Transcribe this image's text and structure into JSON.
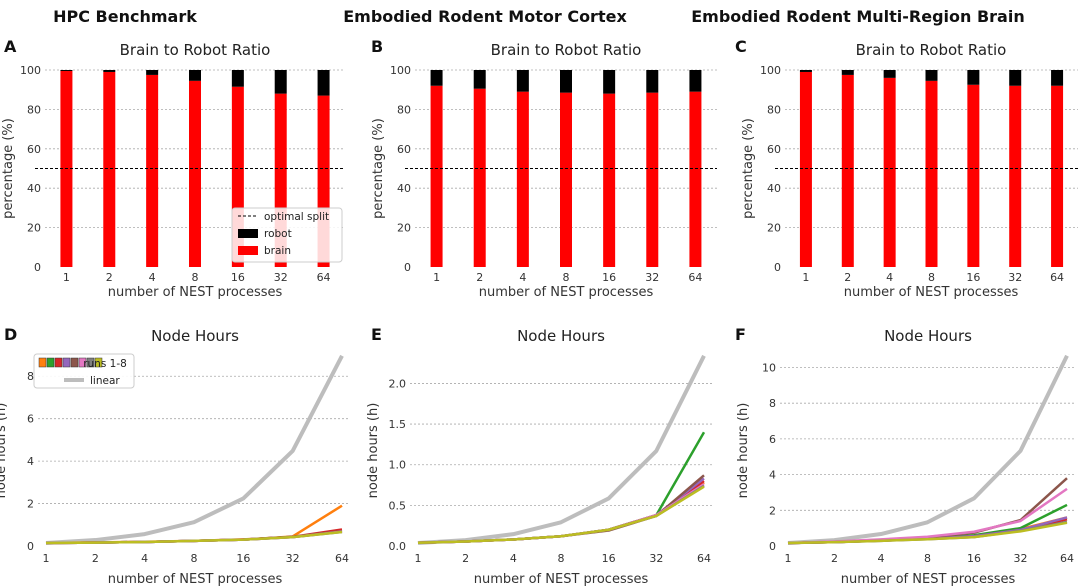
{
  "column_titles": [
    "HPC Benchmark",
    "Embodied Rodent Motor Cortex",
    "Embodied Rodent Multi-Region Brain"
  ],
  "colors": {
    "brain": "#ff0000",
    "robot": "#000000",
    "linear": "#bdbdbd",
    "runs": [
      "#ff7f0e",
      "#2ca02c",
      "#d62728",
      "#9467bd",
      "#8c564b",
      "#e377c2",
      "#7f7f7f",
      "#bcbd22"
    ]
  },
  "legend_ratio": {
    "optimal": "optimal split",
    "robot": "robot",
    "brain": "brain"
  },
  "legend_hours": {
    "runs": "runs 1-8",
    "linear": "linear"
  },
  "chart_data": [
    {
      "id": "A",
      "type": "bar",
      "stacked": true,
      "title": "Brain to Robot Ratio",
      "xlabel": "number of NEST processes",
      "ylabel": "percentage (%)",
      "categories": [
        "1",
        "2",
        "4",
        "8",
        "16",
        "32",
        "64"
      ],
      "ylim": [
        0,
        100
      ],
      "yticks": [
        0,
        20,
        40,
        60,
        80,
        100
      ],
      "reference_line": 50,
      "series": [
        {
          "name": "brain",
          "values": [
            99.5,
            99,
            97.5,
            94.5,
            91.5,
            88,
            87
          ]
        },
        {
          "name": "robot",
          "values": [
            0.5,
            1,
            2.5,
            5.5,
            8.5,
            12,
            13
          ]
        }
      ]
    },
    {
      "id": "B",
      "type": "bar",
      "stacked": true,
      "title": "Brain to Robot Ratio",
      "xlabel": "number of NEST processes",
      "ylabel": "percentage (%)",
      "categories": [
        "1",
        "2",
        "4",
        "8",
        "16",
        "32",
        "64"
      ],
      "ylim": [
        0,
        100
      ],
      "yticks": [
        0,
        20,
        40,
        60,
        80,
        100
      ],
      "reference_line": 50,
      "series": [
        {
          "name": "brain",
          "values": [
            92,
            90.5,
            89,
            88.5,
            88,
            88.5,
            89
          ]
        },
        {
          "name": "robot",
          "values": [
            8,
            9.5,
            11,
            11.5,
            12,
            11.5,
            11
          ]
        }
      ]
    },
    {
      "id": "C",
      "type": "bar",
      "stacked": true,
      "title": "Brain to Robot Ratio",
      "xlabel": "number of NEST processes",
      "ylabel": "percentage (%)",
      "categories": [
        "1",
        "2",
        "4",
        "8",
        "16",
        "32",
        "64"
      ],
      "ylim": [
        0,
        100
      ],
      "yticks": [
        0,
        20,
        40,
        60,
        80,
        100
      ],
      "reference_line": 50,
      "series": [
        {
          "name": "brain",
          "values": [
            99,
            97.5,
            96,
            94.5,
            92.5,
            92,
            92
          ]
        },
        {
          "name": "robot",
          "values": [
            1,
            2.5,
            4,
            5.5,
            7.5,
            8,
            8
          ]
        }
      ]
    },
    {
      "id": "D",
      "type": "line",
      "title": "Node Hours",
      "xlabel": "number of NEST processes",
      "ylabel": "node hours (h)",
      "x": [
        "1",
        "2",
        "4",
        "8",
        "16",
        "32",
        "64"
      ],
      "ylim": [
        0,
        9
      ],
      "yticks": [
        0,
        2,
        4,
        6,
        8
      ],
      "yticklabels": [
        "0",
        "2",
        "4",
        "6",
        "8"
      ],
      "linear": [
        0.14,
        0.28,
        0.56,
        1.12,
        2.24,
        4.48,
        8.96
      ],
      "runs": [
        [
          0.14,
          0.17,
          0.2,
          0.24,
          0.3,
          0.45,
          1.9
        ],
        [
          0.14,
          0.16,
          0.19,
          0.24,
          0.3,
          0.43,
          0.72
        ],
        [
          0.14,
          0.16,
          0.19,
          0.24,
          0.31,
          0.43,
          0.78
        ],
        [
          0.14,
          0.16,
          0.19,
          0.24,
          0.3,
          0.42,
          0.68
        ],
        [
          0.14,
          0.16,
          0.19,
          0.24,
          0.3,
          0.43,
          0.7
        ],
        [
          0.14,
          0.16,
          0.19,
          0.24,
          0.3,
          0.42,
          0.68
        ],
        [
          0.14,
          0.16,
          0.19,
          0.24,
          0.3,
          0.42,
          0.66
        ],
        [
          0.14,
          0.16,
          0.19,
          0.24,
          0.3,
          0.42,
          0.66
        ]
      ]
    },
    {
      "id": "E",
      "type": "line",
      "title": "Node Hours",
      "xlabel": "number of NEST processes",
      "ylabel": "node hours (h)",
      "x": [
        "1",
        "2",
        "4",
        "8",
        "16",
        "32",
        "64"
      ],
      "ylim": [
        0,
        2.35
      ],
      "yticks": [
        0,
        0.5,
        1,
        1.5,
        2
      ],
      "yticklabels": [
        "0.0",
        "0.5",
        "1.0",
        "1.5",
        "2.0"
      ],
      "linear": [
        0.037,
        0.073,
        0.146,
        0.292,
        0.585,
        1.17,
        2.34
      ],
      "runs": [
        [
          0.04,
          0.055,
          0.08,
          0.12,
          0.2,
          0.38,
          0.78
        ],
        [
          0.04,
          0.055,
          0.08,
          0.12,
          0.2,
          0.38,
          1.4
        ],
        [
          0.04,
          0.055,
          0.08,
          0.12,
          0.2,
          0.38,
          0.8
        ],
        [
          0.04,
          0.055,
          0.08,
          0.12,
          0.2,
          0.38,
          0.83
        ],
        [
          0.04,
          0.055,
          0.08,
          0.12,
          0.19,
          0.37,
          0.87
        ],
        [
          0.04,
          0.055,
          0.08,
          0.12,
          0.2,
          0.38,
          0.76
        ],
        [
          0.04,
          0.055,
          0.08,
          0.12,
          0.2,
          0.37,
          0.74
        ],
        [
          0.04,
          0.055,
          0.08,
          0.12,
          0.2,
          0.37,
          0.73
        ]
      ]
    },
    {
      "id": "F",
      "type": "line",
      "title": "Node Hours",
      "xlabel": "number of NEST processes",
      "ylabel": "node hours (h)",
      "x": [
        "1",
        "2",
        "4",
        "8",
        "16",
        "32",
        "64"
      ],
      "ylim": [
        0,
        10.7
      ],
      "yticks": [
        0,
        2,
        4,
        6,
        8,
        10
      ],
      "yticklabels": [
        "0",
        "2",
        "4",
        "6",
        "8",
        "10"
      ],
      "linear": [
        0.17,
        0.33,
        0.67,
        1.33,
        2.67,
        5.33,
        10.66
      ],
      "runs": [
        [
          0.17,
          0.22,
          0.3,
          0.4,
          0.55,
          0.95,
          1.6
        ],
        [
          0.17,
          0.22,
          0.3,
          0.42,
          0.6,
          1.0,
          2.3
        ],
        [
          0.17,
          0.22,
          0.3,
          0.4,
          0.55,
          0.9,
          1.5
        ],
        [
          0.17,
          0.22,
          0.3,
          0.4,
          0.55,
          0.9,
          1.6
        ],
        [
          0.17,
          0.24,
          0.35,
          0.5,
          0.75,
          1.45,
          3.8
        ],
        [
          0.17,
          0.25,
          0.37,
          0.52,
          0.8,
          1.4,
          3.2
        ],
        [
          0.17,
          0.22,
          0.29,
          0.38,
          0.5,
          0.85,
          1.35
        ],
        [
          0.17,
          0.22,
          0.29,
          0.38,
          0.5,
          0.82,
          1.3
        ]
      ]
    }
  ]
}
